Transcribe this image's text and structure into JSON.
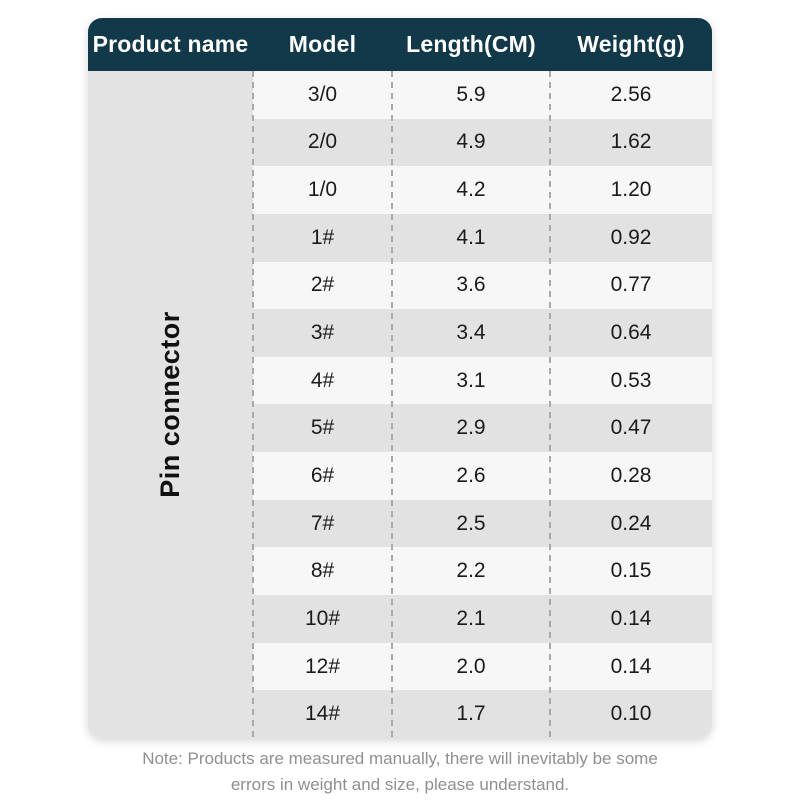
{
  "table": {
    "headers": [
      "Product name",
      "Model",
      "Length(CM)",
      "Weight(g)"
    ],
    "product_name": "Pin connector",
    "rows": [
      {
        "model": "3/0",
        "length": "5.9",
        "weight": "2.56"
      },
      {
        "model": "2/0",
        "length": "4.9",
        "weight": "1.62"
      },
      {
        "model": "1/0",
        "length": "4.2",
        "weight": "1.20"
      },
      {
        "model": "1#",
        "length": "4.1",
        "weight": "0.92"
      },
      {
        "model": "2#",
        "length": "3.6",
        "weight": "0.77"
      },
      {
        "model": "3#",
        "length": "3.4",
        "weight": "0.64"
      },
      {
        "model": "4#",
        "length": "3.1",
        "weight": "0.53"
      },
      {
        "model": "5#",
        "length": "2.9",
        "weight": "0.47"
      },
      {
        "model": "6#",
        "length": "2.6",
        "weight": "0.28"
      },
      {
        "model": "7#",
        "length": "2.5",
        "weight": "0.24"
      },
      {
        "model": "8#",
        "length": "2.2",
        "weight": "0.15"
      },
      {
        "model": "10#",
        "length": "2.1",
        "weight": "0.14"
      },
      {
        "model": "12#",
        "length": "2.0",
        "weight": "0.14"
      },
      {
        "model": "14#",
        "length": "1.7",
        "weight": "0.10"
      }
    ]
  },
  "note": {
    "line1": "Note: Products are measured manually, there will inevitably be some",
    "line2": "errors in weight and size, please understand."
  },
  "colors": {
    "header_bg": "#11394a",
    "header_text": "#ffffff",
    "row_light": "#f7f7f7",
    "row_dark": "#e2e2e2",
    "product_col_bg": "#e3e3e3",
    "dashed_divider": "#a9a9a9",
    "note_text": "#8f8f8f"
  },
  "chart_data": {
    "type": "table",
    "columns": [
      "Product name",
      "Model",
      "Length(CM)",
      "Weight(g)"
    ],
    "product_name": "Pin connector",
    "rows": [
      [
        "Pin connector",
        "3/0",
        5.9,
        2.56
      ],
      [
        "Pin connector",
        "2/0",
        4.9,
        1.62
      ],
      [
        "Pin connector",
        "1/0",
        4.2,
        1.2
      ],
      [
        "Pin connector",
        "1#",
        4.1,
        0.92
      ],
      [
        "Pin connector",
        "2#",
        3.6,
        0.77
      ],
      [
        "Pin connector",
        "3#",
        3.4,
        0.64
      ],
      [
        "Pin connector",
        "4#",
        3.1,
        0.53
      ],
      [
        "Pin connector",
        "5#",
        2.9,
        0.47
      ],
      [
        "Pin connector",
        "6#",
        2.6,
        0.28
      ],
      [
        "Pin connector",
        "7#",
        2.5,
        0.24
      ],
      [
        "Pin connector",
        "8#",
        2.2,
        0.15
      ],
      [
        "Pin connector",
        "10#",
        2.1,
        0.14
      ],
      [
        "Pin connector",
        "12#",
        2.0,
        0.14
      ],
      [
        "Pin connector",
        "14#",
        1.7,
        0.1
      ]
    ],
    "title": "",
    "annotation": "Note: Products are measured manually, there will inevitably be some errors in weight and size, please understand."
  }
}
